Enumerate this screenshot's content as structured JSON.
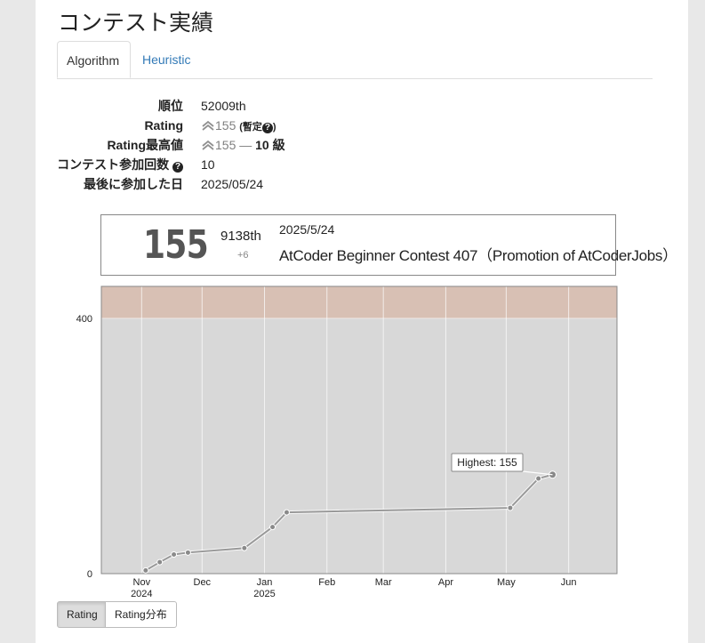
{
  "page_title": "コンテスト実績",
  "tabs": [
    {
      "label": "Algorithm",
      "active": true
    },
    {
      "label": "Heuristic",
      "active": false
    }
  ],
  "stats": {
    "rank_label": "順位",
    "rank_value": "52009th",
    "rating_label": "Rating",
    "rating_value": "155",
    "rating_provisional": "暫定",
    "highest_label": "Rating最高値",
    "highest_value": "155",
    "highest_dash": "—",
    "highest_kyu": "10 級",
    "count_label": "コンテスト参加回数",
    "count_value": "10",
    "last_label": "最後に参加した日",
    "last_value": "2025/05/24",
    "help_icon": "question-circle-icon",
    "rank_icon": "double-chevron-up-icon"
  },
  "contest_card": {
    "rating": "155",
    "place": "9138th",
    "diff": "+6",
    "date": "2025/5/24",
    "contest_name": "AtCoder Beginner Contest 407（Promotion of AtCoderJobs）"
  },
  "chart_data": {
    "type": "line",
    "title": "",
    "xlabel": "",
    "ylabel": "",
    "x_ticks": [
      {
        "label": "Nov",
        "sublabel": "2024",
        "date": "2024-11-01"
      },
      {
        "label": "Dec",
        "sublabel": "",
        "date": "2024-12-01"
      },
      {
        "label": "Jan",
        "sublabel": "2025",
        "date": "2025-01-01"
      },
      {
        "label": "Feb",
        "sublabel": "",
        "date": "2025-02-01"
      },
      {
        "label": "Mar",
        "sublabel": "",
        "date": "2025-03-01"
      },
      {
        "label": "Apr",
        "sublabel": "",
        "date": "2025-04-01"
      },
      {
        "label": "May",
        "sublabel": "",
        "date": "2025-05-01"
      },
      {
        "label": "Jun",
        "sublabel": "",
        "date": "2025-06-01"
      }
    ],
    "y_ticks": [
      0,
      400
    ],
    "ylim": [
      0,
      450
    ],
    "xlim": [
      "2024-10-12",
      "2025-06-25"
    ],
    "bands": [
      {
        "from": 0,
        "to": 400,
        "color": "#d8d8d8"
      },
      {
        "from": 400,
        "to": 450,
        "color": "#d8c0b4"
      }
    ],
    "series": [
      {
        "color": "#999999",
        "points": [
          {
            "date": "2024-11-03",
            "rating": 5
          },
          {
            "date": "2024-11-10",
            "rating": 18
          },
          {
            "date": "2024-11-17",
            "rating": 30
          },
          {
            "date": "2024-11-24",
            "rating": 33
          },
          {
            "date": "2024-12-22",
            "rating": 40
          },
          {
            "date": "2025-01-05",
            "rating": 73
          },
          {
            "date": "2025-01-12",
            "rating": 96
          },
          {
            "date": "2025-05-03",
            "rating": 103
          },
          {
            "date": "2025-05-17",
            "rating": 149
          },
          {
            "date": "2025-05-24",
            "rating": 155
          }
        ]
      }
    ],
    "annotation": {
      "text": "Highest: 155",
      "date": "2025-05-24",
      "rating": 155
    }
  },
  "buttons": [
    {
      "label": "Rating",
      "active": true
    },
    {
      "label": "Rating分布",
      "active": false
    }
  ],
  "colors": {
    "link": "#337ab7",
    "plot_bg": "#d8d8d8",
    "brown_band": "#d8c0b4",
    "line": "#999999"
  }
}
